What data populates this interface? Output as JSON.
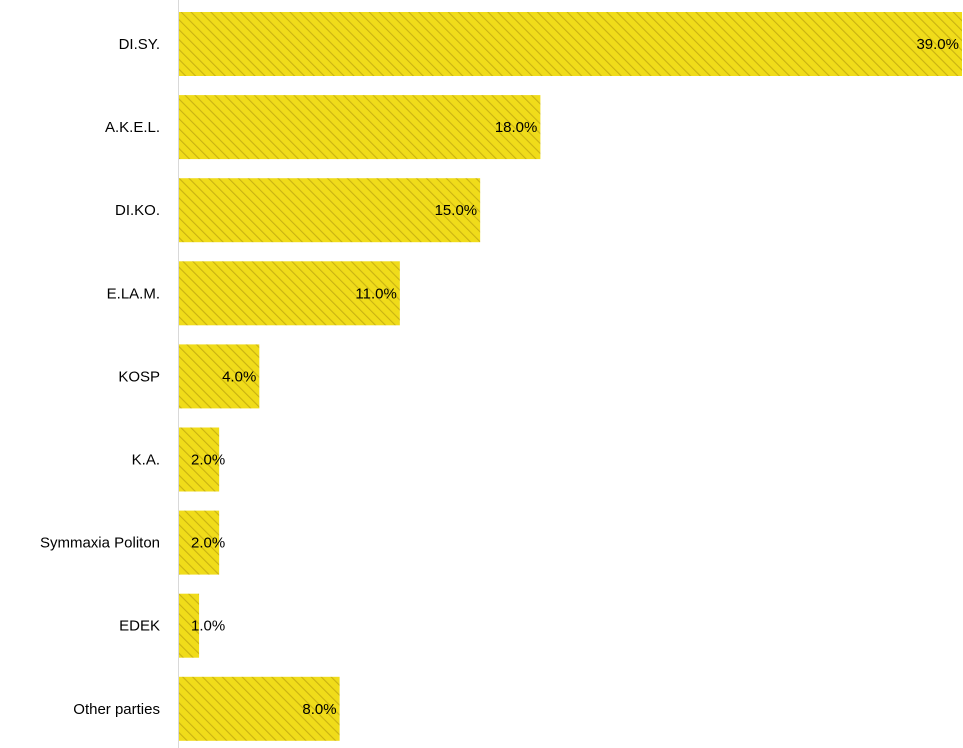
{
  "chart_data": {
    "type": "bar",
    "orientation": "horizontal",
    "title": "",
    "xlabel": "",
    "ylabel": "",
    "categories": [
      "DI.SY.",
      "A.K.E.L.",
      "DI.KO.",
      "E.LA.M.",
      "KOSP",
      "K.A.",
      "Symmaxia Politon",
      "EDEK",
      "Other parties"
    ],
    "values": [
      39.0,
      18.0,
      15.0,
      11.0,
      4.0,
      2.0,
      2.0,
      1.0,
      8.0
    ],
    "value_labels": [
      "39.0%",
      "18.0%",
      "15.0%",
      "11.0%",
      "4.0%",
      "2.0%",
      "2.0%",
      "1.0%",
      "8.0%"
    ],
    "xlim": [
      0,
      39
    ],
    "grid": false,
    "legend": "none",
    "bar_color": "#f0dc1a",
    "stripe_color": "#c9b212",
    "axis_color": "#d9d9d9"
  }
}
